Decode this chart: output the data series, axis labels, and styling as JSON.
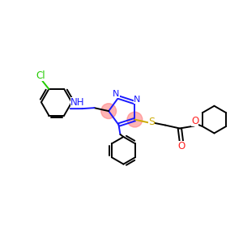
{
  "bg_color": "#ffffff",
  "atom_colors": {
    "N": "#1a1aff",
    "S": "#ccaa00",
    "O": "#ff2222",
    "Cl": "#22cc00",
    "C": "#000000",
    "highlight": "#ff7777"
  },
  "figsize": [
    3.0,
    3.0
  ],
  "dpi": 100
}
